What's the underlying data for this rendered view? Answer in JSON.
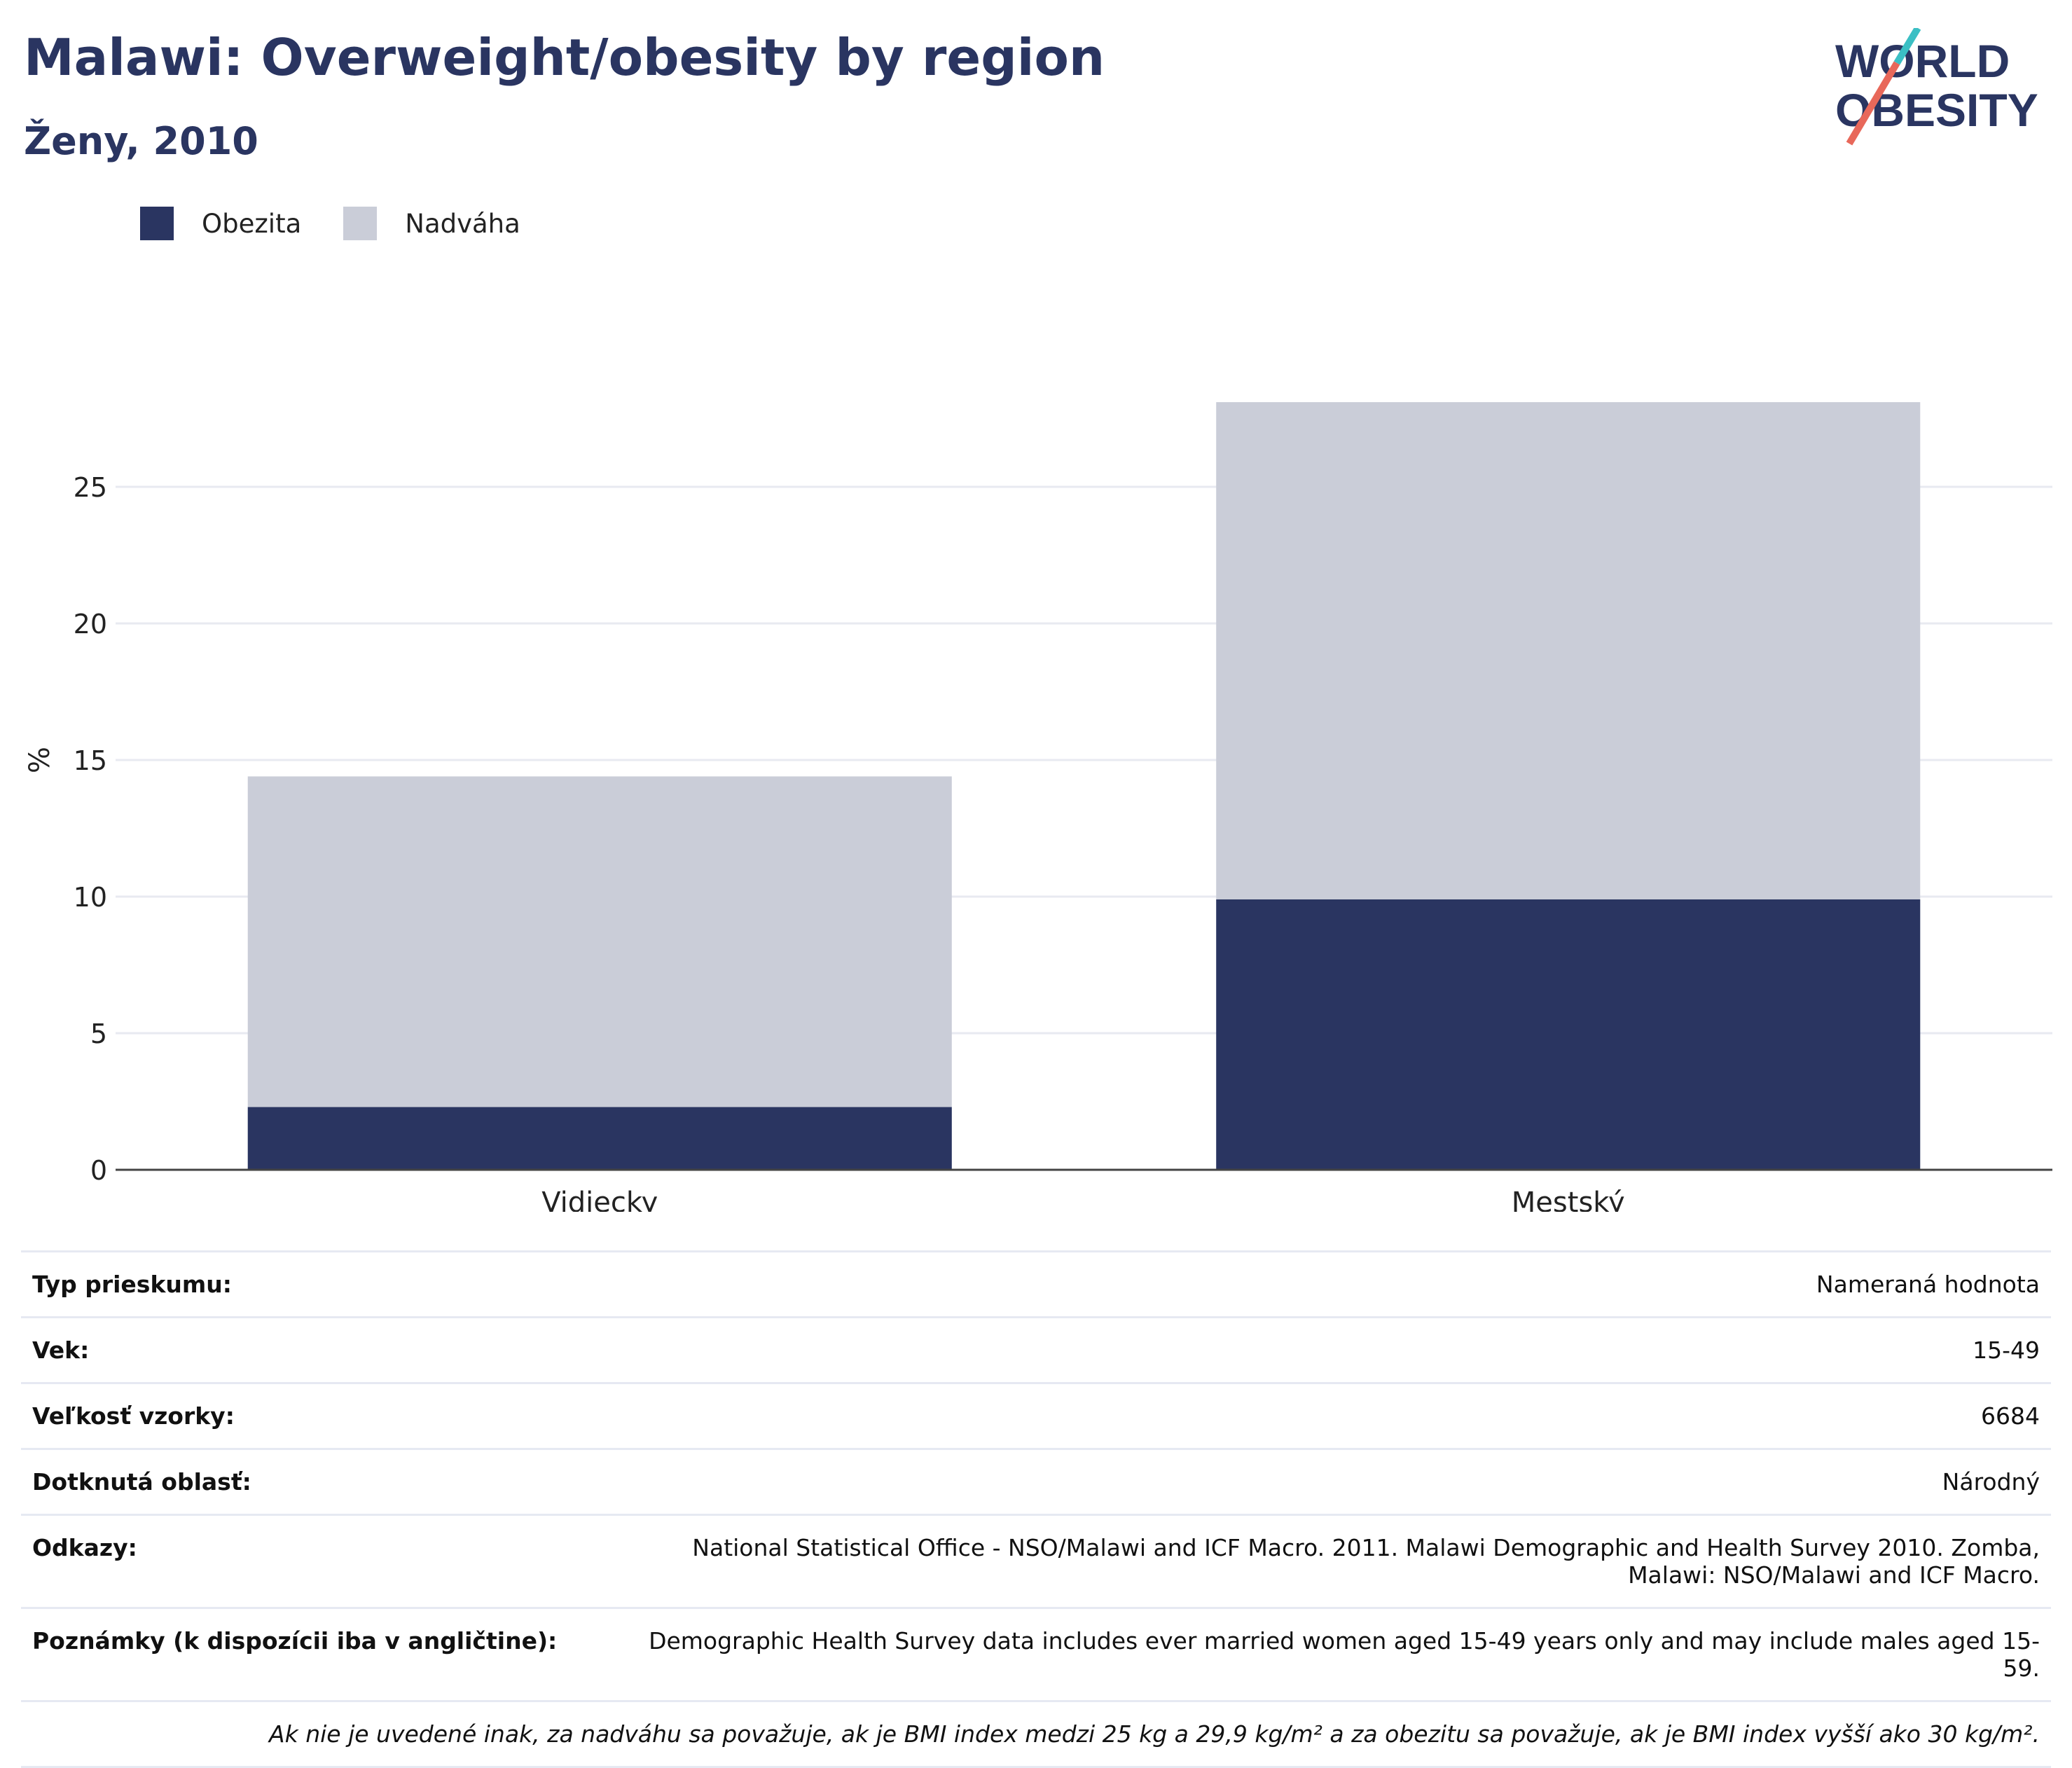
{
  "header": {
    "title": "Malawi: Overweight/obesity by region",
    "subtitle": "Ženy, 2010"
  },
  "logo": {
    "line1": "WORLD",
    "line2": "OBESITY"
  },
  "colors": {
    "obesity": "#2a3561",
    "overweight": "#cacdd8",
    "title": "#2a3561",
    "logo_accent_red": "#e8685a",
    "logo_accent_teal": "#3bbfc4"
  },
  "chart_data": {
    "type": "bar",
    "stacked": true,
    "categories": [
      "Vidiecky",
      "Mestský"
    ],
    "series": [
      {
        "name": "Obezita",
        "values": [
          2.3,
          9.9
        ]
      },
      {
        "name": "Nadváha",
        "values": [
          12.1,
          18.2
        ]
      }
    ],
    "ylabel": "%",
    "ylim": [
      0,
      30
    ],
    "yticks": [
      0,
      5,
      10,
      15,
      20,
      25
    ],
    "grid": true,
    "legend": "top-left"
  },
  "legend": [
    {
      "label": "Obezita"
    },
    {
      "label": "Nadváha"
    }
  ],
  "info_table": {
    "rows": [
      {
        "label": "Typ prieskumu:",
        "value": "Nameraná hodnota"
      },
      {
        "label": "Vek:",
        "value": "15-49"
      },
      {
        "label": "Veľkosť vzorky:",
        "value": "6684"
      },
      {
        "label": "Dotknutá oblasť:",
        "value": "Národný"
      },
      {
        "label": "Odkazy:",
        "value": "National Statistical Office - NSO/Malawi and ICF Macro. 2011. Malawi Demographic and Health Survey 2010. Zomba, Malawi: NSO/Malawi and ICF Macro."
      },
      {
        "label": "Poznámky (k dispozícii iba v angličtine):",
        "value": "Demographic Health Survey data includes ever married women aged 15-49 years only and may include males aged 15-59."
      }
    ],
    "footnote": "Ak nie je uvedené inak, za nadváhu sa považuje, ak je BMI index medzi 25 kg a 29,9 kg/m² a za obezitu sa považuje, ak je BMI index vyšší ako 30 kg/m²."
  }
}
